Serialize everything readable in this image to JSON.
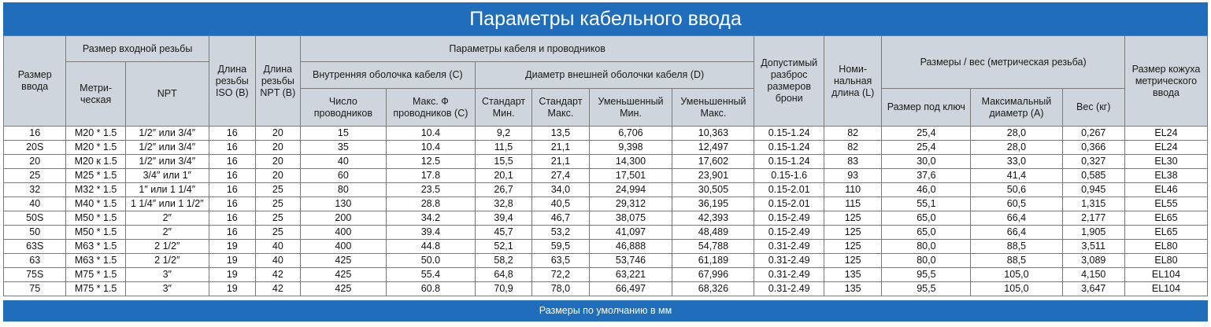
{
  "title": "Параметры кабельного ввода",
  "footer": "Размеры по умолчанию в мм",
  "headers": {
    "entry_size": "Размер ввода",
    "thread_group": "Размер входной резьбы",
    "metric": "Метри-ческая",
    "npt": "NPT",
    "iso_len": "Длина резьбы ISO (B)",
    "npt_len": "Длина резьбы NPT (B)",
    "cable_group": "Параметры кабеля и проводников",
    "inner_group": "Внутренняя оболочка кабеля (C)",
    "outer_group": "Диаметр внешней оболочки кабеля (D)",
    "conductors": "Число проводников",
    "max_cond": "Макс. Ф проводников (C)",
    "std_min": "Стандарт Мин.",
    "std_max": "Стандарт Макс.",
    "red_min": "Уменьшенный Мин.",
    "red_max": "Уменьшенный Макс.",
    "armor": "Допустимый разброс размеров брони",
    "nominal": "Номи-нальная длина (L)",
    "dims_group": "Размеры / вес (метрическая резьба)",
    "wrench": "Размер под ключ",
    "max_dia": "Максимальный диаметр (A)",
    "weight": "Вес (кг)",
    "shroud": "Размер кожуха метрического ввода"
  },
  "rows": [
    [
      "16",
      "M20 * 1.5",
      "1/2″ или 3/4″",
      "16",
      "20",
      "15",
      "10.4",
      "9,2",
      "13,5",
      "6,706",
      "10,363",
      "0.15-1.24",
      "82",
      "25,4",
      "28,0",
      "0,267",
      "EL24"
    ],
    [
      "20S",
      "M20 * 1.5",
      "1/2″ или 3/4″",
      "16",
      "20",
      "35",
      "10.4",
      "11,5",
      "21,1",
      "9,398",
      "12,497",
      "0.15-1.24",
      "82",
      "25,4",
      "28,0",
      "0,366",
      "EL24"
    ],
    [
      "20",
      "M20 к 1.5",
      "1/2″ или 3/4″",
      "16",
      "20",
      "40",
      "12.5",
      "15,5",
      "21,1",
      "14,300",
      "17,602",
      "0.15-1.24",
      "83",
      "30,0",
      "33,0",
      "0,327",
      "EL30"
    ],
    [
      "25",
      "M25 * 1.5",
      "3/4″ или 1″",
      "16",
      "20",
      "60",
      "17.8",
      "20,1",
      "27,4",
      "17,501",
      "23,901",
      "0.15-1.6",
      "93",
      "37,6",
      "41,4",
      "0,585",
      "EL38"
    ],
    [
      "32",
      "M32 * 1.5",
      "1″ или 1 1/4″",
      "16",
      "25",
      "80",
      "23.5",
      "26,7",
      "34,0",
      "24,994",
      "30,505",
      "0.15-2.01",
      "110",
      "46,0",
      "50,6",
      "0,945",
      "EL46"
    ],
    [
      "40",
      "M40 * 1.5",
      "1 1/4″ или 1 1/2″",
      "16",
      "25",
      "130",
      "28.8",
      "32,8",
      "40,5",
      "29,312",
      "36,195",
      "0.15-2.01",
      "115",
      "55,1",
      "60,5",
      "1,315",
      "EL55"
    ],
    [
      "50S",
      "M50 * 1.5",
      "2″",
      "16",
      "25",
      "200",
      "34.2",
      "39,4",
      "46,7",
      "38,075",
      "42,393",
      "0.15-2.49",
      "125",
      "65,0",
      "66,4",
      "2,177",
      "EL65"
    ],
    [
      "50",
      "M50 * 1.5",
      "2″",
      "16",
      "25",
      "400",
      "39.4",
      "45,7",
      "53,2",
      "41,097",
      "48,489",
      "0.15-2.49",
      "125",
      "65,0",
      "66,4",
      "1,905",
      "EL65"
    ],
    [
      "63S",
      "M63 * 1.5",
      "2 1/2″",
      "19",
      "40",
      "400",
      "44.8",
      "52,1",
      "59,5",
      "46,888",
      "54,788",
      "0.31-2.49",
      "125",
      "80,0",
      "88,5",
      "3,511",
      "EL80"
    ],
    [
      "63",
      "M63 * 1.5",
      "2 1/2″",
      "19",
      "40",
      "425",
      "50.0",
      "58,2",
      "63,5",
      "53,746",
      "61,189",
      "0.31-2.49",
      "125",
      "80,0",
      "88,5",
      "3,089",
      "EL80"
    ],
    [
      "75S",
      "M75 * 1.5",
      "3″",
      "19",
      "42",
      "425",
      "55.4",
      "64,8",
      "72,2",
      "63,221",
      "67,996",
      "0.31-2.49",
      "135",
      "95,5",
      "105,0",
      "4,150",
      "EL104"
    ],
    [
      "75",
      "M75 * 1.5",
      "3″",
      "19",
      "42",
      "425",
      "60.8",
      "70,9",
      "78,0",
      "66,497",
      "68,326",
      "0.31-2.49",
      "135",
      "95,5",
      "105,0",
      "3,647",
      "EL104"
    ]
  ]
}
